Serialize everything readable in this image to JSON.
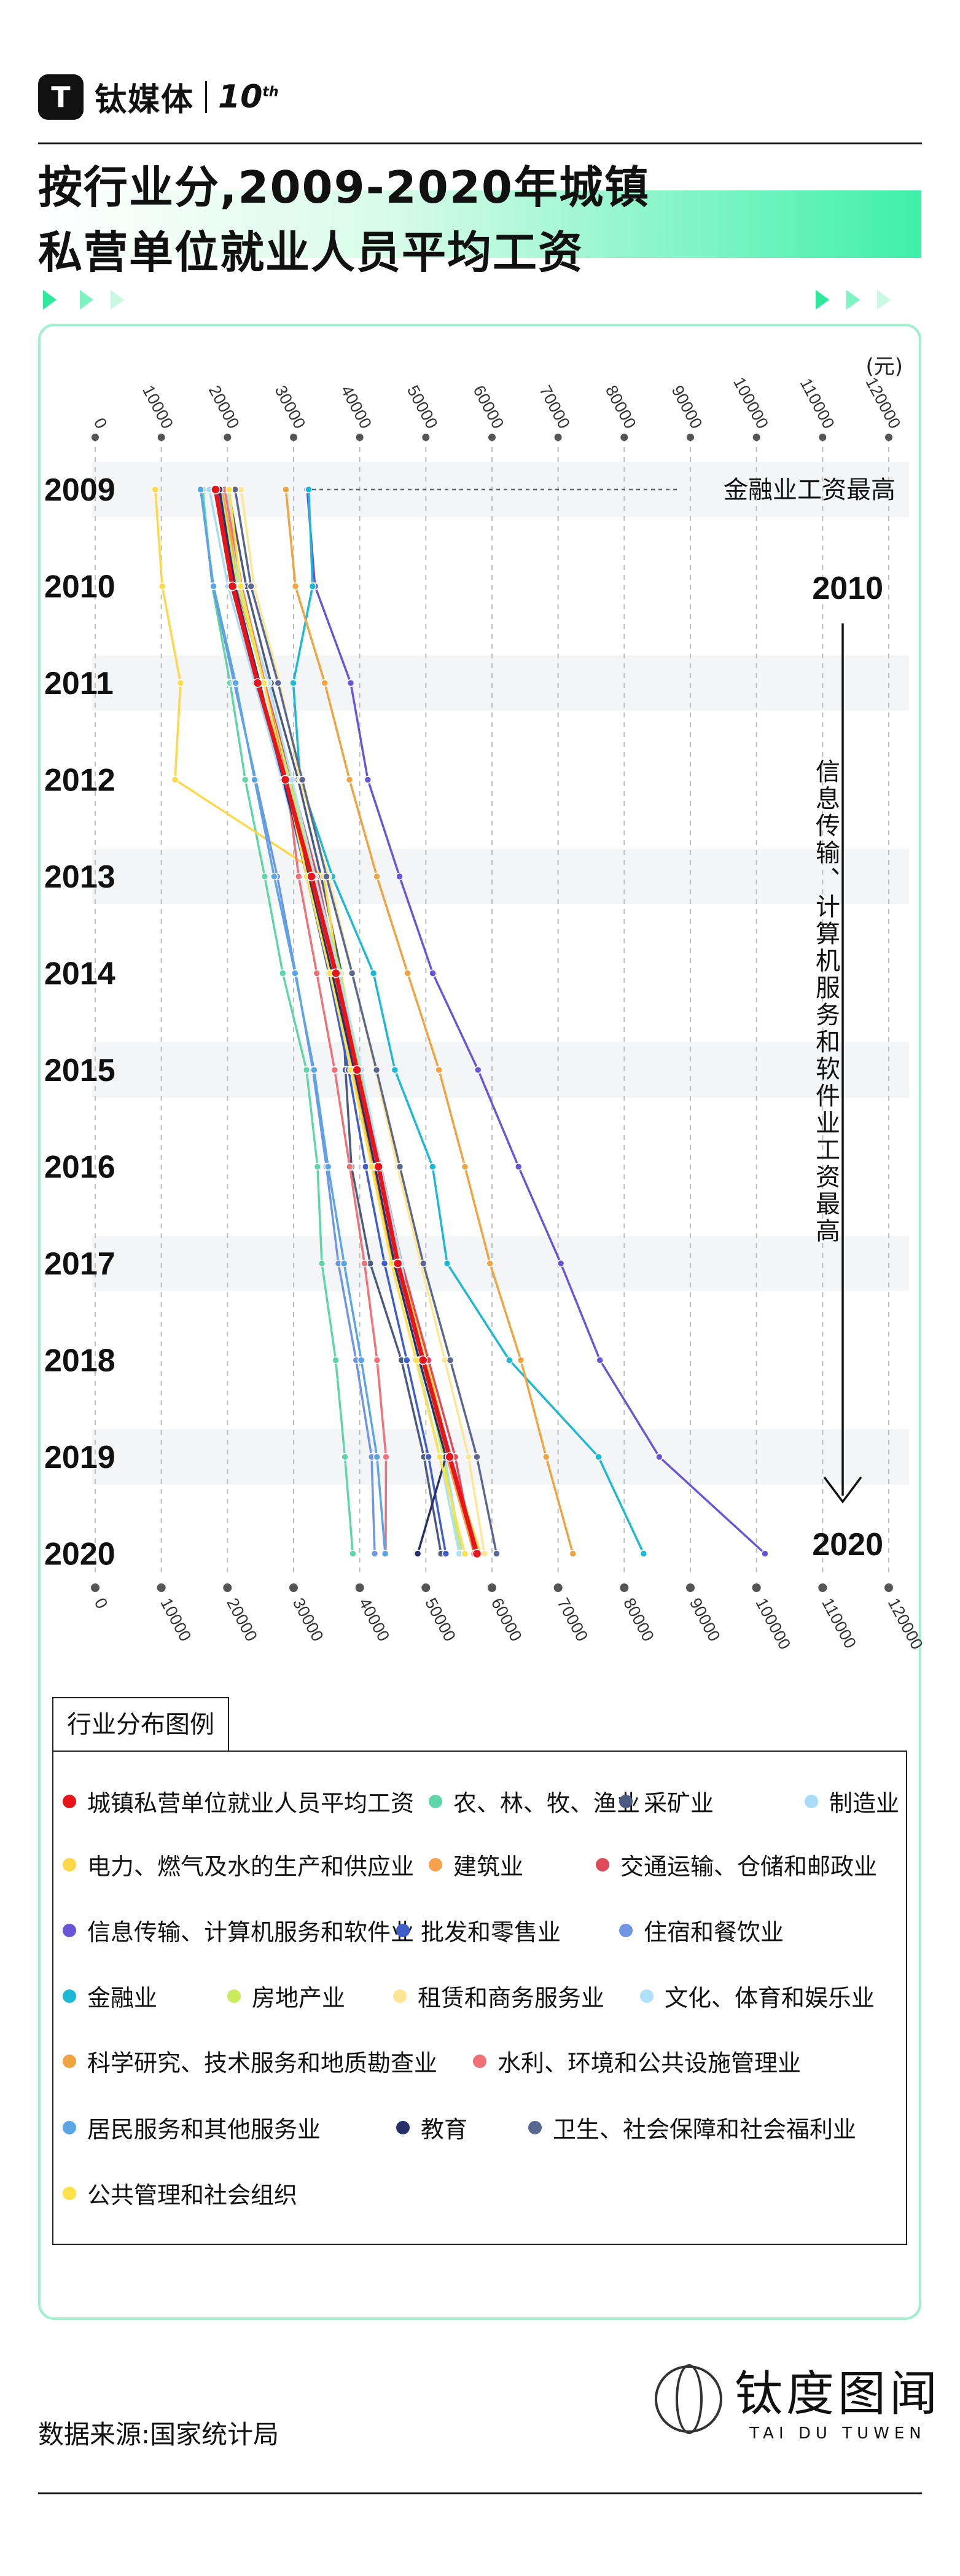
{
  "brand": {
    "logo_glyph": "T",
    "name": "钛媒体",
    "ten": "10",
    "ten_sup": "th"
  },
  "title": {
    "line1": "按行业分,2009-2020年城镇",
    "line2": "私营单位就业人员平均工资"
  },
  "watermark": {
    "brand_name": "钛媒体",
    "tdw_cn": "钛度图闻",
    "tdw_en": "TAI DU TUWEN"
  },
  "footer": {
    "source": "数据来源:国家统计局",
    "tdw_cn": "钛度图闻",
    "tdw_en": "TAI DU TUWEN"
  },
  "chart_data": {
    "type": "line",
    "orientation": "vertical-time",
    "unit_label": "(元)",
    "x_ticks": [
      0,
      10000,
      20000,
      30000,
      40000,
      50000,
      60000,
      70000,
      80000,
      90000,
      100000,
      110000,
      120000
    ],
    "xlim": [
      0,
      120000
    ],
    "years": [
      2009,
      2010,
      2011,
      2012,
      2013,
      2014,
      2015,
      2016,
      2017,
      2018,
      2019,
      2020
    ],
    "annotations": {
      "top": "金融业工资最高",
      "year_start": "2010",
      "year_end": "2020",
      "side": "信息传输、计算机服务和软件业工资最高"
    },
    "legend_title": "行业分布图例",
    "series": [
      {
        "name": "城镇私营单位就业人员平均工资",
        "color": "#e8141c",
        "highlight": true,
        "values": [
          18199,
          20759,
          24556,
          28752,
          32706,
          36390,
          39589,
          42833,
          45761,
          49575,
          53604,
          57727
        ]
      },
      {
        "name": "农、林、牧、渔业",
        "color": "#5fd6a9",
        "values": [
          16261,
          17691,
          20393,
          22687,
          25626,
          28356,
          31947,
          33612,
          34272,
          36375,
          37760,
          38956
        ]
      },
      {
        "name": "采矿业",
        "color": "#4a5a80",
        "values": [
          20103,
          22842,
          26582,
          30691,
          34163,
          37263,
          37844,
          38751,
          41593,
          46313,
          49711,
          52302
        ]
      },
      {
        "name": "制造业",
        "color": "#a9dcf6",
        "values": [
          17260,
          20090,
          24138,
          28215,
          32035,
          35653,
          38948,
          42066,
          45388,
          49275,
          52858,
          55467
        ]
      },
      {
        "name": "电力、燃气及水的生产和供应业",
        "color": "#ffd84a",
        "values": [
          9072,
          10134,
          12893,
          12070,
          34573,
          36785,
          40238,
          42788,
          46030,
          50233,
          53576,
          58279
        ]
      },
      {
        "name": "建筑业",
        "color": "#f7a14a",
        "values": [
          19163,
          21916,
          25686,
          28851,
          32654,
          35963,
          39080,
          41936,
          45165,
          49041,
          53176,
          57309
        ]
      },
      {
        "name": "交通运输、仓储和邮政业",
        "color": "#e04a5a",
        "values": [
          18918,
          21409,
          25611,
          29657,
          33556,
          36727,
          40053,
          43213,
          46370,
          50406,
          54441,
          57313
        ]
      },
      {
        "name": "信息传输、计算机服务和软件业",
        "color": "#6a55d6",
        "values": [
          32053,
          33246,
          38640,
          41226,
          46025,
          51044,
          57891,
          64013,
          70415,
          76327,
          85301,
          101281
        ]
      },
      {
        "name": "批发和零售业",
        "color": "#3f5ec9",
        "values": [
          18640,
          20791,
          24640,
          28432,
          32003,
          35326,
          38304,
          40894,
          43744,
          47121,
          50404,
          53018
        ]
      },
      {
        "name": "住宿和餐饮业",
        "color": "#6f95e4",
        "values": [
          15968,
          17796,
          21014,
          24269,
          27526,
          30319,
          32921,
          34959,
          36774,
          39454,
          41795,
          42258
        ]
      },
      {
        "name": "金融业",
        "color": "#1bb9d4",
        "values": [
          32283,
          32866,
          29957,
          30991,
          35874,
          42081,
          45314,
          51017,
          53219,
          62627,
          76107,
          82930
        ]
      },
      {
        "name": "房地产业",
        "color": "#c8ec5e",
        "values": [
          18941,
          21563,
          25498,
          29385,
          33132,
          37148,
          39909,
          42817,
          45761,
          49408,
          52637,
          55276
        ]
      },
      {
        "name": "租赁和商务服务业",
        "color": "#ffe694",
        "values": [
          22076,
          24017,
          27888,
          30974,
          35253,
          38911,
          42407,
          45691,
          49238,
          52871,
          56456,
          58849
        ]
      },
      {
        "name": "文化、体育和娱乐业",
        "color": "#aee1f8",
        "values": [
          20019,
          21758,
          26213,
          29768,
          33244,
          36839,
          40262,
          43178,
          46331,
          48734,
          52110,
          55036
        ]
      },
      {
        "name": "科学研究、技术服务和地质勘查业",
        "color": "#f0a341",
        "values": [
          28830,
          30279,
          34706,
          38452,
          42591,
          47245,
          51982,
          55908,
          59694,
          64367,
          68186,
          72233
        ]
      },
      {
        "name": "水利、环境和公共设施管理业",
        "color": "#f07178",
        "values": [
          19574,
          22171,
          25616,
          28913,
          30774,
          33498,
          36201,
          38489,
          40716,
          42620,
          43968,
          43926
        ]
      },
      {
        "name": "居民服务和其他服务业",
        "color": "#5aa5e6",
        "values": [
          15934,
          17891,
          21243,
          24109,
          27062,
          30219,
          33097,
          35224,
          37633,
          40238,
          42612,
          43844
        ]
      },
      {
        "name": "教育",
        "color": "#28306a",
        "values": [
          18808,
          21126,
          24869,
          28451,
          32209,
          35826,
          39181,
          42307,
          45232,
          49001,
          53034,
          48773
        ]
      },
      {
        "name": "卫生、社会保障和社会福利业",
        "color": "#5a6790",
        "values": [
          21157,
          23566,
          27651,
          31314,
          34965,
          38839,
          42540,
          46071,
          49618,
          53693,
          57718,
          60689
        ]
      },
      {
        "name": "公共管理和社会组织",
        "color": "#ffe24a",
        "values": [
          20270,
          22000,
          25500,
          28800,
          32000,
          35500,
          38700,
          41800,
          44800,
          48500,
          52100,
          55900
        ]
      }
    ]
  }
}
